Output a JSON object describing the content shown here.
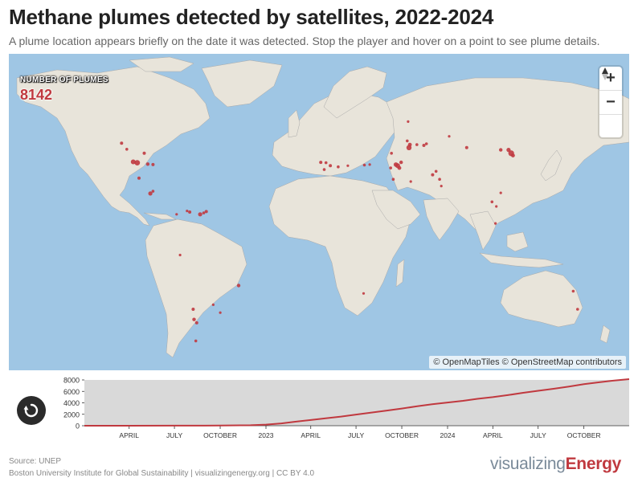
{
  "title": "Methane plumes detected by satellites, 2022-2024",
  "subtitle": "A plume location appears briefly on the date it was detected. Stop the player and hover on a point to see plume details.",
  "map": {
    "counter_label": "NUMBER OF PLUMES",
    "counter_value": "8142",
    "zoom_in_label": "+",
    "zoom_out_label": "−",
    "attribution": "© OpenMapTiles © OpenStreetMap contributors",
    "colors": {
      "water": "#9fc6e4",
      "land": "#e8e4da",
      "plume": "#c0393f"
    },
    "plumes": [
      {
        "lon": -101.5,
        "lat": 31.8,
        "r": 3.4
      },
      {
        "lon": -103.8,
        "lat": 32.2,
        "r": 3.0
      },
      {
        "lon": -95.5,
        "lat": 31.2,
        "r": 2.2
      },
      {
        "lon": -92.5,
        "lat": 31.0,
        "r": 2.0
      },
      {
        "lon": -110.5,
        "lat": 40.5,
        "r": 2.0
      },
      {
        "lon": -107.5,
        "lat": 37.8,
        "r": 1.8
      },
      {
        "lon": -97.5,
        "lat": 36.0,
        "r": 2.0
      },
      {
        "lon": -100.5,
        "lat": 25.0,
        "r": 2.0
      },
      {
        "lon": -94.0,
        "lat": 18.2,
        "r": 2.6
      },
      {
        "lon": -92.5,
        "lat": 19.2,
        "r": 1.8
      },
      {
        "lon": -79.0,
        "lat": 9.0,
        "r": 1.6
      },
      {
        "lon": -73.0,
        "lat": 10.5,
        "r": 1.6
      },
      {
        "lon": -71.5,
        "lat": 10.0,
        "r": 2.0
      },
      {
        "lon": -65.5,
        "lat": 9.0,
        "r": 2.6
      },
      {
        "lon": -63.5,
        "lat": 9.6,
        "r": 1.8
      },
      {
        "lon": -62.0,
        "lat": 10.2,
        "r": 2.0
      },
      {
        "lon": -77.0,
        "lat": -9.0,
        "r": 1.6
      },
      {
        "lon": -43.5,
        "lat": -22.5,
        "r": 2.2
      },
      {
        "lon": -69.5,
        "lat": -33.0,
        "r": 2.0
      },
      {
        "lon": -69.0,
        "lat": -37.5,
        "r": 2.2
      },
      {
        "lon": -67.5,
        "lat": -39.0,
        "r": 2.0
      },
      {
        "lon": -68.0,
        "lat": -47.0,
        "r": 1.8
      },
      {
        "lon": -54.0,
        "lat": -34.5,
        "r": 1.6
      },
      {
        "lon": -58.0,
        "lat": -31.0,
        "r": 1.6
      },
      {
        "lon": 3.5,
        "lat": 32.0,
        "r": 2.0
      },
      {
        "lon": 6.5,
        "lat": 31.8,
        "r": 1.8
      },
      {
        "lon": 9.0,
        "lat": 30.5,
        "r": 2.0
      },
      {
        "lon": 5.5,
        "lat": 28.8,
        "r": 1.8
      },
      {
        "lon": 13.5,
        "lat": 30.0,
        "r": 1.8
      },
      {
        "lon": 19.0,
        "lat": 30.5,
        "r": 1.6
      },
      {
        "lon": 28.5,
        "lat": 30.8,
        "r": 1.8
      },
      {
        "lon": 31.5,
        "lat": 31.0,
        "r": 1.6
      },
      {
        "lon": 44.0,
        "lat": 36.0,
        "r": 1.8
      },
      {
        "lon": 46.5,
        "lat": 31.0,
        "r": 2.8
      },
      {
        "lon": 47.5,
        "lat": 30.5,
        "r": 3.0
      },
      {
        "lon": 48.5,
        "lat": 29.5,
        "r": 2.4
      },
      {
        "lon": 49.5,
        "lat": 32.0,
        "r": 2.2
      },
      {
        "lon": 43.5,
        "lat": 29.5,
        "r": 1.8
      },
      {
        "lon": 45.0,
        "lat": 24.5,
        "r": 1.8
      },
      {
        "lon": 54.0,
        "lat": 38.5,
        "r": 3.2
      },
      {
        "lon": 54.5,
        "lat": 39.8,
        "r": 2.4
      },
      {
        "lon": 53.0,
        "lat": 41.5,
        "r": 1.8
      },
      {
        "lon": 58.5,
        "lat": 39.8,
        "r": 1.8
      },
      {
        "lon": 62.5,
        "lat": 39.5,
        "r": 2.0
      },
      {
        "lon": 64.0,
        "lat": 40.2,
        "r": 1.8
      },
      {
        "lon": 53.5,
        "lat": 50.0,
        "r": 1.6
      },
      {
        "lon": 55.0,
        "lat": 23.5,
        "r": 1.6
      },
      {
        "lon": 67.5,
        "lat": 26.5,
        "r": 2.0
      },
      {
        "lon": 71.5,
        "lat": 24.5,
        "r": 1.8
      },
      {
        "lon": 72.5,
        "lat": 21.5,
        "r": 1.6
      },
      {
        "lon": 69.5,
        "lat": 28.0,
        "r": 1.8
      },
      {
        "lon": 77.0,
        "lat": 43.5,
        "r": 1.6
      },
      {
        "lon": 87.0,
        "lat": 38.5,
        "r": 2.0
      },
      {
        "lon": 106.5,
        "lat": 37.5,
        "r": 2.2
      },
      {
        "lon": 112.5,
        "lat": 36.0,
        "r": 3.6
      },
      {
        "lon": 111.0,
        "lat": 37.5,
        "r": 2.6
      },
      {
        "lon": 113.5,
        "lat": 35.0,
        "r": 2.4
      },
      {
        "lon": 101.5,
        "lat": 14.5,
        "r": 1.8
      },
      {
        "lon": 104.0,
        "lat": 12.5,
        "r": 1.6
      },
      {
        "lon": 103.5,
        "lat": 5.0,
        "r": 1.6
      },
      {
        "lon": 106.5,
        "lat": 18.5,
        "r": 1.6
      },
      {
        "lon": 148.0,
        "lat": -25.0,
        "r": 1.8
      },
      {
        "lon": 150.5,
        "lat": -33.0,
        "r": 1.8
      },
      {
        "lon": 28.0,
        "lat": -26.0,
        "r": 1.6
      }
    ]
  },
  "controls": {
    "replay": "replay-icon"
  },
  "chart_data": {
    "type": "area",
    "title": "",
    "xlabel": "",
    "ylabel": "",
    "x_range": [
      "2022-01-01",
      "2024-12-31"
    ],
    "ylim": [
      0,
      8000
    ],
    "y_ticks": [
      "0",
      "2000",
      "4000",
      "6000",
      "8000"
    ],
    "x_tick_labels": [
      {
        "date": "2022-04-01",
        "label": "APRIL"
      },
      {
        "date": "2022-07-01",
        "label": "JULY"
      },
      {
        "date": "2022-10-01",
        "label": "OCTOBER"
      },
      {
        "date": "2023-01-01",
        "label": "2023"
      },
      {
        "date": "2023-04-01",
        "label": "APRIL"
      },
      {
        "date": "2023-07-01",
        "label": "JULY"
      },
      {
        "date": "2023-10-01",
        "label": "OCTOBER"
      },
      {
        "date": "2024-01-01",
        "label": "2024"
      },
      {
        "date": "2024-04-01",
        "label": "APRIL"
      },
      {
        "date": "2024-07-01",
        "label": "JULY"
      },
      {
        "date": "2024-10-01",
        "label": "OCTOBER"
      }
    ],
    "series": [
      {
        "x": [
          "2022-01-01",
          "2022-04-01",
          "2022-07-01",
          "2022-10-01",
          "2022-12-01",
          "2023-01-01",
          "2023-02-01",
          "2023-03-01",
          "2023-04-01",
          "2023-05-01",
          "2023-06-01",
          "2023-07-01",
          "2023-08-01",
          "2023-09-01",
          "2023-10-01",
          "2023-11-01",
          "2023-12-01",
          "2024-01-01",
          "2024-02-01",
          "2024-03-01",
          "2024-04-01",
          "2024-05-01",
          "2024-06-01",
          "2024-07-01",
          "2024-08-01",
          "2024-09-01",
          "2024-10-01",
          "2024-11-01",
          "2024-12-01",
          "2024-12-31"
        ],
        "values": [
          0,
          0,
          10,
          30,
          80,
          200,
          400,
          700,
          1000,
          1300,
          1600,
          1950,
          2300,
          2650,
          3000,
          3400,
          3750,
          4050,
          4350,
          4700,
          5000,
          5350,
          5750,
          6100,
          6450,
          6850,
          7250,
          7600,
          7900,
          8142
        ]
      }
    ],
    "line_color": "#c0393f",
    "background": "#d9d9d9"
  },
  "footer": {
    "source": "Source: UNEP",
    "credit": "Boston University Institute for Global Sustainability | visualizingenergy.org | CC BY 4.0",
    "brand_light": "visualizing",
    "brand_bold": "Energy"
  }
}
